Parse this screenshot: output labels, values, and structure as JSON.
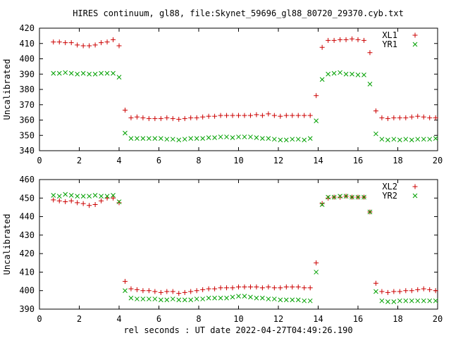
{
  "title": "HIRES continuum, gl88, file:Skynet_59696_gl88_80720_29370.cyb.txt",
  "xlabel": "rel seconds : UT date 2022-04-27T04:49:26.190",
  "chart_data": [
    {
      "type": "scatter",
      "ylabel": "Uncalibrated",
      "xlim": [
        0,
        20
      ],
      "ylim": [
        340,
        420
      ],
      "x_ticks": [
        "0",
        "2",
        "4",
        "6",
        "8",
        "10",
        "12",
        "14",
        "16",
        "18",
        "20"
      ],
      "y_ticks": [
        "340",
        "350",
        "360",
        "370",
        "380",
        "390",
        "400",
        "410",
        "420"
      ],
      "legend_position": "top-right",
      "grid": false,
      "series": [
        {
          "name": "XL1",
          "marker": "plus",
          "color": "#cc0000",
          "x": [
            0.7,
            1.0,
            1.3,
            1.6,
            1.9,
            2.2,
            2.5,
            2.8,
            3.1,
            3.4,
            3.7,
            4.0,
            4.3,
            4.6,
            4.9,
            5.2,
            5.5,
            5.8,
            6.1,
            6.4,
            6.7,
            7.0,
            7.3,
            7.6,
            7.9,
            8.2,
            8.5,
            8.8,
            9.1,
            9.4,
            9.7,
            10.0,
            10.3,
            10.6,
            10.9,
            11.2,
            11.5,
            11.8,
            12.1,
            12.4,
            12.7,
            13.0,
            13.3,
            13.6,
            13.9,
            14.2,
            14.5,
            14.8,
            15.1,
            15.4,
            15.7,
            16.0,
            16.3,
            16.6,
            16.9,
            17.2,
            17.5,
            17.8,
            18.1,
            18.4,
            18.7,
            19.0,
            19.3,
            19.6,
            19.9
          ],
          "y": [
            411,
            411,
            410.5,
            410.5,
            409,
            408.5,
            408.5,
            409,
            410.5,
            411,
            412.5,
            408.5,
            366.5,
            361.5,
            362,
            361.5,
            361,
            361,
            361,
            361.5,
            361,
            360.5,
            361,
            361.5,
            361.5,
            362,
            362.5,
            362.5,
            363,
            363,
            363,
            363,
            363,
            363,
            363.5,
            363,
            364,
            363,
            362.5,
            363,
            363,
            363,
            363,
            363,
            376,
            407.5,
            412,
            412,
            412.5,
            412.5,
            413,
            412.5,
            412,
            404,
            366,
            361.5,
            361,
            361.5,
            361.5,
            361.5,
            362,
            362.5,
            362,
            361.5,
            361.5
          ]
        },
        {
          "name": "YR1",
          "marker": "cross",
          "color": "#00a000",
          "x": [
            0.7,
            1.0,
            1.3,
            1.6,
            1.9,
            2.2,
            2.5,
            2.8,
            3.1,
            3.4,
            3.7,
            4.0,
            4.3,
            4.6,
            4.9,
            5.2,
            5.5,
            5.8,
            6.1,
            6.4,
            6.7,
            7.0,
            7.3,
            7.6,
            7.9,
            8.2,
            8.5,
            8.8,
            9.1,
            9.4,
            9.7,
            10.0,
            10.3,
            10.6,
            10.9,
            11.2,
            11.5,
            11.8,
            12.1,
            12.4,
            12.7,
            13.0,
            13.3,
            13.6,
            13.9,
            14.2,
            14.5,
            14.8,
            15.1,
            15.4,
            15.7,
            16.0,
            16.3,
            16.6,
            16.9,
            17.2,
            17.5,
            17.8,
            18.1,
            18.4,
            18.7,
            19.0,
            19.3,
            19.6,
            19.9
          ],
          "y": [
            390.5,
            390.5,
            391,
            390.5,
            390,
            390.5,
            390,
            390,
            390.5,
            390.5,
            390.5,
            388,
            351.5,
            348,
            348,
            348,
            348,
            348,
            348,
            347.5,
            347.5,
            347,
            347.5,
            348,
            348,
            348,
            348.5,
            348.5,
            349,
            349,
            348.5,
            349,
            349,
            349,
            348.5,
            348,
            348,
            347.5,
            347,
            347,
            347.5,
            347.5,
            347,
            348,
            359.5,
            386.5,
            390,
            390.5,
            391,
            390,
            390,
            389.5,
            389.5,
            383.5,
            351,
            347.5,
            347,
            347.5,
            347,
            347.5,
            347,
            347.5,
            347.5,
            347.5,
            348
          ]
        }
      ]
    },
    {
      "type": "scatter",
      "ylabel": "Uncalibrated",
      "xlim": [
        0,
        20
      ],
      "ylim": [
        390,
        460
      ],
      "x_ticks": [
        "0",
        "2",
        "4",
        "6",
        "8",
        "10",
        "12",
        "14",
        "16",
        "18",
        "20"
      ],
      "y_ticks": [
        "390",
        "400",
        "410",
        "420",
        "430",
        "440",
        "450",
        "460"
      ],
      "legend_position": "top-right",
      "grid": false,
      "series": [
        {
          "name": "XL2",
          "marker": "plus",
          "color": "#cc0000",
          "x": [
            0.7,
            1.0,
            1.3,
            1.6,
            1.9,
            2.2,
            2.5,
            2.8,
            3.1,
            3.4,
            3.7,
            4.0,
            4.3,
            4.6,
            4.9,
            5.2,
            5.5,
            5.8,
            6.1,
            6.4,
            6.7,
            7.0,
            7.3,
            7.6,
            7.9,
            8.2,
            8.5,
            8.8,
            9.1,
            9.4,
            9.7,
            10.0,
            10.3,
            10.6,
            10.9,
            11.2,
            11.5,
            11.8,
            12.1,
            12.4,
            12.7,
            13.0,
            13.3,
            13.6,
            13.9,
            14.2,
            14.5,
            14.8,
            15.1,
            15.4,
            15.7,
            16.0,
            16.3,
            16.6,
            16.9,
            17.2,
            17.5,
            17.8,
            18.1,
            18.4,
            18.7,
            19.0,
            19.3,
            19.6,
            19.9
          ],
          "y": [
            449,
            448.5,
            448,
            448.5,
            447.5,
            447,
            446,
            446.5,
            448.5,
            450,
            450,
            447.5,
            405,
            401,
            400.5,
            400,
            400,
            399.5,
            399,
            399.5,
            399.5,
            398.5,
            399,
            399.5,
            400,
            400.5,
            401,
            401,
            401.5,
            401.5,
            401.5,
            402,
            402,
            402,
            402,
            401.5,
            402,
            401.5,
            401.5,
            402,
            402,
            402,
            401.5,
            401.5,
            415,
            447,
            450,
            450.5,
            450.5,
            451,
            450.5,
            450.5,
            450.5,
            442.5,
            404,
            399.5,
            399,
            399.5,
            399.5,
            400,
            400,
            400.5,
            401,
            400.5,
            400
          ]
        },
        {
          "name": "YR2",
          "marker": "cross",
          "color": "#00a000",
          "x": [
            0.7,
            1.0,
            1.3,
            1.6,
            1.9,
            2.2,
            2.5,
            2.8,
            3.1,
            3.4,
            3.7,
            4.0,
            4.3,
            4.6,
            4.9,
            5.2,
            5.5,
            5.8,
            6.1,
            6.4,
            6.7,
            7.0,
            7.3,
            7.6,
            7.9,
            8.2,
            8.5,
            8.8,
            9.1,
            9.4,
            9.7,
            10.0,
            10.3,
            10.6,
            10.9,
            11.2,
            11.5,
            11.8,
            12.1,
            12.4,
            12.7,
            13.0,
            13.3,
            13.6,
            13.9,
            14.2,
            14.5,
            14.8,
            15.1,
            15.4,
            15.7,
            16.0,
            16.3,
            16.6,
            16.9,
            17.2,
            17.5,
            17.8,
            18.1,
            18.4,
            18.7,
            19.0,
            19.3,
            19.6,
            19.9
          ],
          "y": [
            451.5,
            451,
            452,
            451.5,
            451,
            451,
            451,
            451.5,
            451,
            451,
            451.5,
            448,
            400,
            396,
            395.5,
            395.5,
            395.5,
            395.5,
            395,
            395,
            395.5,
            395,
            395,
            395,
            395.5,
            395.5,
            396,
            396,
            396,
            396,
            396.5,
            397,
            397,
            396.5,
            396,
            396,
            395.5,
            395.5,
            395,
            395,
            395,
            395,
            394.5,
            394.5,
            410,
            446.5,
            450.5,
            450.5,
            451,
            451,
            450.5,
            450.5,
            450.5,
            442.5,
            399.5,
            394.5,
            394,
            394,
            394.5,
            394.5,
            394.5,
            394.5,
            394.5,
            394.5,
            394.5
          ]
        }
      ]
    }
  ]
}
